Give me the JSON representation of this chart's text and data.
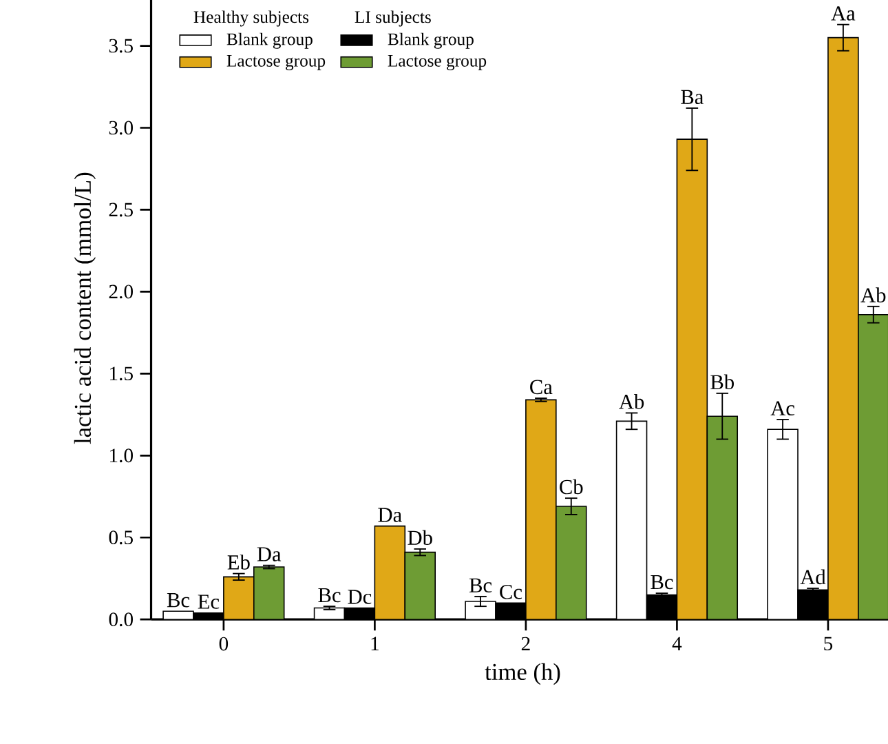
{
  "chart_data": {
    "type": "bar",
    "xlabel": "time (h)",
    "ylabel": "lactic acid content (mmol/L)",
    "categories": [
      "0",
      "1",
      "2",
      "4",
      "5"
    ],
    "series": [
      {
        "name": "Blank group",
        "color": "#ffffff",
        "values": [
          0.05,
          0.07,
          0.11,
          1.21,
          1.16
        ],
        "errors": [
          null,
          0.01,
          0.03,
          0.05,
          0.06
        ],
        "value_labels": [
          "Bc",
          "Bc",
          "Bc",
          "Ab",
          "Ac"
        ]
      },
      {
        "name": "Blank group",
        "color": "#000000",
        "values": [
          0.04,
          0.07,
          0.1,
          0.15,
          0.18
        ],
        "errors": [
          null,
          null,
          null,
          0.01,
          0.01
        ],
        "value_labels": [
          "Ec",
          "Dc",
          "Cc",
          "Bc",
          "Ad"
        ]
      },
      {
        "name": "Lactose group",
        "color": "#e0a817",
        "values": [
          0.26,
          0.57,
          1.34,
          2.93,
          3.55
        ],
        "errors": [
          0.02,
          null,
          0.01,
          0.19,
          0.08
        ],
        "value_labels": [
          "Eb",
          "Da",
          "Ca",
          "Ba",
          "Aa"
        ]
      },
      {
        "name": "Lactose group",
        "color": "#6e9c34",
        "values": [
          0.32,
          0.41,
          0.69,
          1.24,
          1.86
        ],
        "errors": [
          0.01,
          0.02,
          0.05,
          0.14,
          0.05
        ],
        "value_labels": [
          "Da",
          "Db",
          "Cb",
          "Bb",
          "Ab"
        ]
      }
    ],
    "annotations": [
      "Healthy subjects",
      "LI subjects"
    ],
    "ylim": [
      0,
      3.8
    ],
    "yticks": [
      {
        "value": 0,
        "label": "0.0"
      },
      0.5,
      {
        "value": 1,
        "label": "1.0"
      },
      1.5,
      {
        "value": 2,
        "label": "2.0"
      },
      2.5,
      {
        "value": 3,
        "label": "3.0"
      },
      3.5
    ],
    "legend": "top left",
    "grid": false
  }
}
